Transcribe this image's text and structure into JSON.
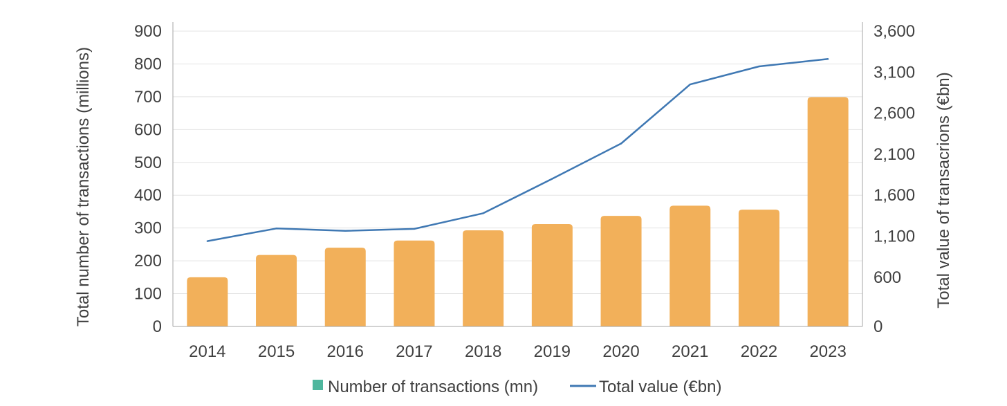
{
  "chart_data": {
    "type": "bar",
    "categories": [
      "2014",
      "2015",
      "2016",
      "2017",
      "2018",
      "2019",
      "2020",
      "2021",
      "2022",
      "2023"
    ],
    "series": [
      {
        "name": "Number of transactions (mn)",
        "type": "bar",
        "axis": "left",
        "values": [
          150,
          218,
          240,
          262,
          293,
          312,
          337,
          368,
          356,
          699
        ],
        "legend_color": "#4fb79e",
        "bar_color": "#f2b05a"
      },
      {
        "name": "Total value (€bn)",
        "type": "line",
        "axis": "right",
        "values": [
          1040,
          1195,
          1165,
          1190,
          1380,
          1800,
          2230,
          2950,
          3170,
          3260
        ],
        "color": "#3f78b3"
      }
    ],
    "xlabel": "",
    "ylabel": "Total number of transactions (millions)",
    "y2label": "Total value of transacrions (€bn)",
    "ylim": [
      0,
      900
    ],
    "y2lim": [
      0,
      3600
    ],
    "yticks": [
      "0",
      "100",
      "200",
      "300",
      "400",
      "500",
      "600",
      "700",
      "800",
      "900"
    ],
    "y2ticks": [
      "0",
      "600",
      "1,100",
      "1,600",
      "2,100",
      "2,600",
      "3,100",
      "3,600"
    ],
    "y2tick_values": [
      0,
      600,
      1100,
      1600,
      2100,
      2600,
      3100,
      3600
    ],
    "grid": true,
    "legend_position": "bottom"
  }
}
